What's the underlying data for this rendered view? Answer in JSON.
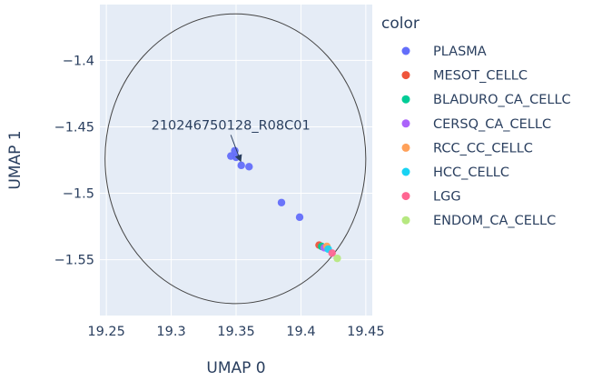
{
  "chart_data": {
    "type": "scatter",
    "xlabel": "UMAP 0",
    "ylabel": "UMAP 1",
    "xlim": [
      19.245,
      19.455
    ],
    "ylim": [
      -1.592,
      -1.358
    ],
    "x_ticks": [
      19.25,
      19.3,
      19.35,
      19.4,
      19.45
    ],
    "y_ticks": [
      -1.4,
      -1.45,
      -1.5,
      -1.55
    ],
    "x_tick_labels": [
      "19.25",
      "19.3",
      "19.35",
      "19.4",
      "19.45"
    ],
    "y_tick_labels": [
      "−1.4",
      "−1.45",
      "−1.5",
      "−1.55"
    ],
    "grid": true,
    "legend": {
      "title": "color",
      "placement": "right"
    },
    "series": [
      {
        "name": "PLASMA",
        "color": "#636efa",
        "points": [
          {
            "x": 19.349,
            "y": -1.468
          },
          {
            "x": 19.346,
            "y": -1.472
          },
          {
            "x": 19.35,
            "y": -1.473
          },
          {
            "x": 19.354,
            "y": -1.479
          },
          {
            "x": 19.36,
            "y": -1.48
          },
          {
            "x": 19.385,
            "y": -1.507
          },
          {
            "x": 19.399,
            "y": -1.518
          }
        ]
      },
      {
        "name": "MESOT_CELLC",
        "color": "#EF553B",
        "points": [
          {
            "x": 19.414,
            "y": -1.539
          }
        ]
      },
      {
        "name": "BLADURO_CA_CELLC",
        "color": "#00cc96",
        "points": [
          {
            "x": 19.416,
            "y": -1.54
          }
        ]
      },
      {
        "name": "CERSQ_CA_CELLC",
        "color": "#ab63fa",
        "points": [
          {
            "x": 19.418,
            "y": -1.541
          }
        ]
      },
      {
        "name": "RCC_CC_CELLC",
        "color": "#FFA15A",
        "points": [
          {
            "x": 19.42,
            "y": -1.54
          }
        ]
      },
      {
        "name": "HCC_CELLC",
        "color": "#19d3f3",
        "points": [
          {
            "x": 19.421,
            "y": -1.542
          }
        ]
      },
      {
        "name": "LGG",
        "color": "#FF6692",
        "points": [
          {
            "x": 19.424,
            "y": -1.545
          }
        ]
      },
      {
        "name": "ENDOM_CA_CELLC",
        "color": "#B6E880",
        "points": [
          {
            "x": 19.428,
            "y": -1.549
          }
        ]
      }
    ],
    "annotation": {
      "text": "210246750128_R08C01",
      "x": 19.355,
      "y": -1.478
    },
    "circle_shape": {
      "x0": 19.249,
      "x1": 19.45,
      "y0": -1.583,
      "y1": -1.365
    }
  }
}
